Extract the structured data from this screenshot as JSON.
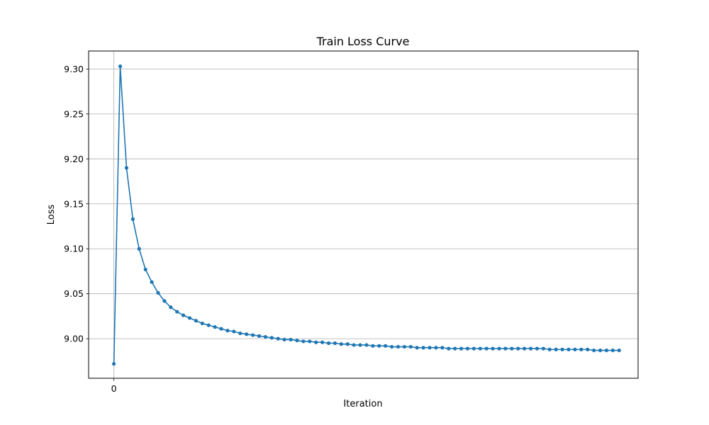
{
  "chart_data": {
    "type": "line",
    "title": "Train Loss Curve",
    "xlabel": "Iteration",
    "ylabel": "Loss",
    "x_ticks": [
      0
    ],
    "y_ticks": [
      "9.00",
      "9.05",
      "9.10",
      "9.15",
      "9.20",
      "9.25",
      "9.30"
    ],
    "ylim": [
      8.956,
      9.32
    ],
    "xlim": [
      -4,
      83
    ],
    "grid": "horizontal",
    "series": [
      {
        "color": "#1f77b4",
        "marker": "circle",
        "x": [
          0,
          1,
          2,
          3,
          4,
          5,
          6,
          7,
          8,
          9,
          10,
          11,
          12,
          13,
          14,
          15,
          16,
          17,
          18,
          19,
          20,
          21,
          22,
          23,
          24,
          25,
          26,
          27,
          28,
          29,
          30,
          31,
          32,
          33,
          34,
          35,
          36,
          37,
          38,
          39,
          40,
          41,
          42,
          43,
          44,
          45,
          46,
          47,
          48,
          49,
          50,
          51,
          52,
          53,
          54,
          55,
          56,
          57,
          58,
          59,
          60,
          61,
          62,
          63,
          64,
          65,
          66,
          67,
          68,
          69,
          70,
          71,
          72,
          73,
          74,
          75,
          76,
          77,
          78,
          79,
          80
        ],
        "values": [
          8.972,
          9.303,
          9.19,
          9.133,
          9.1,
          9.077,
          9.063,
          9.051,
          9.042,
          9.035,
          9.03,
          9.026,
          9.023,
          9.02,
          9.017,
          9.015,
          9.013,
          9.011,
          9.009,
          9.008,
          9.006,
          9.005,
          9.004,
          9.003,
          9.002,
          9.001,
          9.0,
          8.999,
          8.999,
          8.998,
          8.997,
          8.997,
          8.996,
          8.996,
          8.995,
          8.995,
          8.994,
          8.994,
          8.993,
          8.993,
          8.993,
          8.992,
          8.992,
          8.992,
          8.991,
          8.991,
          8.991,
          8.991,
          8.99,
          8.99,
          8.99,
          8.99,
          8.99,
          8.989,
          8.989,
          8.989,
          8.989,
          8.989,
          8.989,
          8.989,
          8.989,
          8.989,
          8.989,
          8.989,
          8.989,
          8.989,
          8.989,
          8.989,
          8.989,
          8.988,
          8.988,
          8.988,
          8.988,
          8.988,
          8.988,
          8.988,
          8.987,
          8.987,
          8.987,
          8.987,
          8.987
        ]
      }
    ]
  }
}
